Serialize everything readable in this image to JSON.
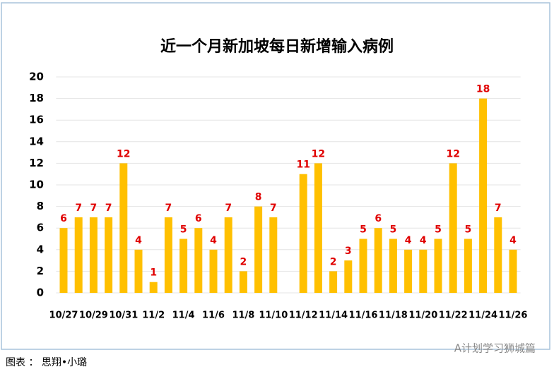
{
  "chart_data": {
    "type": "bar",
    "title": "近一个月新加坡每日新增输入病例",
    "categories": [
      "10/27",
      null,
      "10/29",
      null,
      "10/31",
      null,
      "11/2",
      null,
      "11/4",
      null,
      "11/6",
      null,
      "11/8",
      null,
      "11/10",
      null,
      "11/12",
      null,
      "11/14",
      null,
      "11/16",
      null,
      "11/18",
      null,
      "11/20",
      null,
      "11/22",
      null,
      "11/24",
      null,
      "11/26"
    ],
    "values": [
      6,
      7,
      7,
      7,
      12,
      4,
      1,
      7,
      5,
      6,
      4,
      7,
      2,
      8,
      7,
      null,
      11,
      12,
      2,
      3,
      5,
      6,
      5,
      4,
      4,
      5,
      12,
      5,
      18,
      7,
      4
    ],
    "color": "#ffc000",
    "label_color": "#e00000",
    "ylim": [
      0,
      20
    ],
    "yticks": [
      0,
      2,
      4,
      6,
      8,
      10,
      12,
      14,
      16,
      18,
      20
    ],
    "grid": true
  },
  "source": "图表 ： 思翔•小璐",
  "watermark": "A计划学习狮城篇"
}
